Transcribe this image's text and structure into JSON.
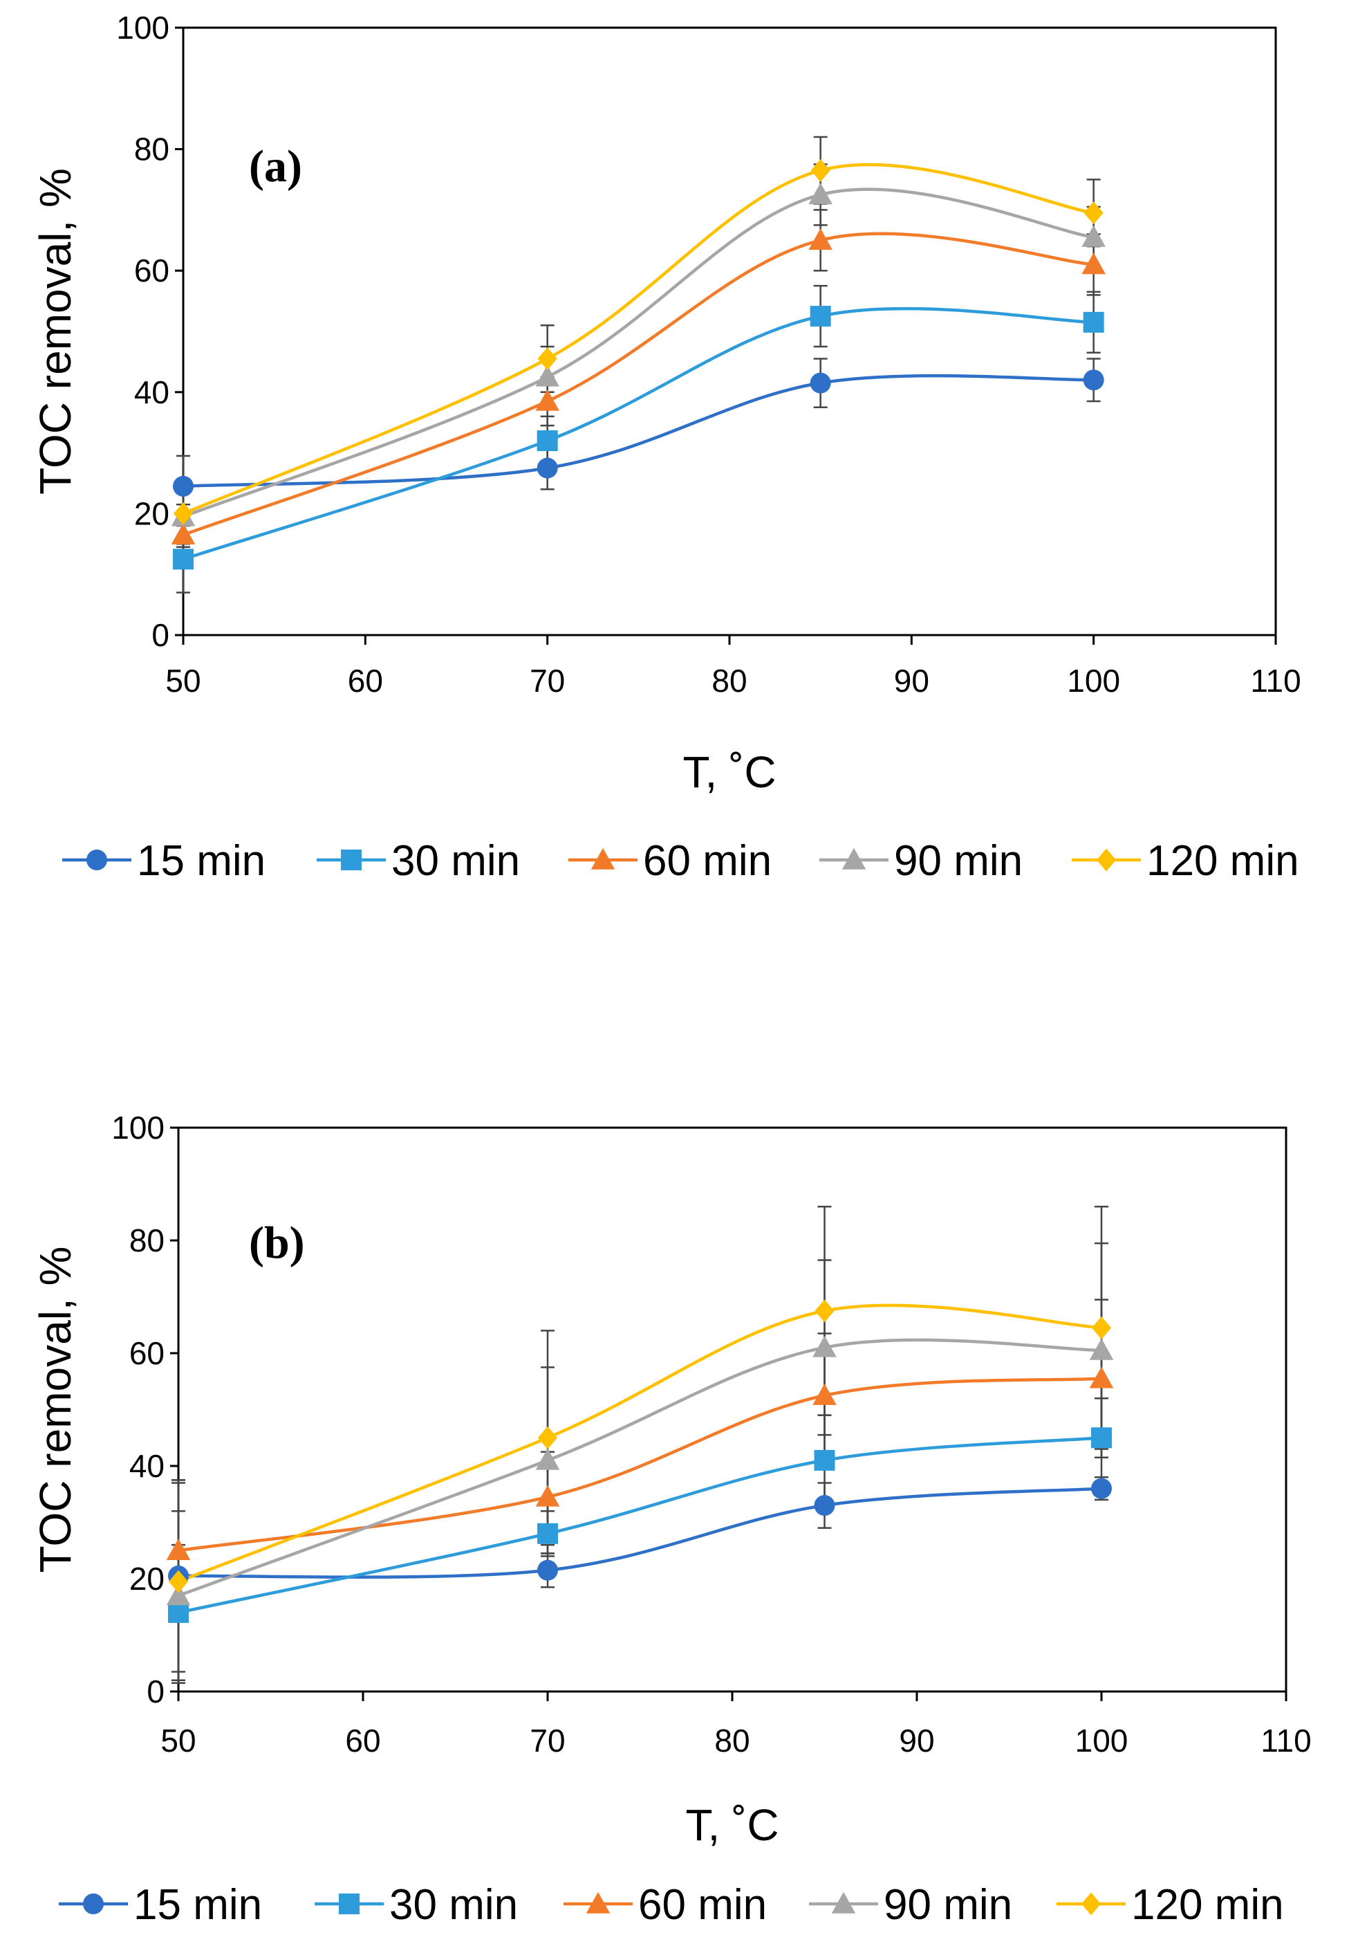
{
  "chart_data": [
    {
      "panel": "(a)",
      "type": "line",
      "xlabel": "T, ˚C",
      "ylabel": "TOC removal, %",
      "xlim": [
        50,
        110
      ],
      "ylim": [
        0,
        100
      ],
      "xticks": [
        50,
        60,
        70,
        80,
        90,
        100,
        110
      ],
      "yticks": [
        0,
        20,
        40,
        60,
        80,
        100
      ],
      "grid": false,
      "legend": "bottom",
      "x": [
        50,
        70,
        85,
        100
      ],
      "series": [
        {
          "name": "15 min",
          "color": "#2E6FC8",
          "marker": "circle",
          "values": [
            24.5,
            27.5,
            41.5,
            42.0
          ],
          "err": [
            5,
            3.5,
            4,
            3.5
          ]
        },
        {
          "name": "30 min",
          "color": "#2E9CDB",
          "marker": "square",
          "values": [
            12.5,
            32.0,
            52.5,
            51.5
          ],
          "err": [
            5.5,
            4,
            5,
            5
          ]
        },
        {
          "name": "60 min",
          "color": "#F27B2A",
          "marker": "triangle",
          "values": [
            16.5,
            38.5,
            65.0,
            61.0
          ],
          "err": [
            5,
            4,
            5,
            5
          ]
        },
        {
          "name": "90 min",
          "color": "#A6A6A6",
          "marker": "triangle",
          "values": [
            19.5,
            42.5,
            72.5,
            65.5
          ],
          "err": [
            5,
            5,
            5,
            5
          ]
        },
        {
          "name": "120 min",
          "color": "#FFC000",
          "marker": "diamond",
          "values": [
            20.0,
            45.5,
            76.5,
            69.5
          ],
          "err": [
            5,
            5.5,
            5.5,
            5.5
          ]
        }
      ]
    },
    {
      "panel": "(b)",
      "type": "line",
      "xlabel": "T, ˚C",
      "ylabel": "TOC removal, %",
      "xlim": [
        50,
        110
      ],
      "ylim": [
        0,
        100
      ],
      "xticks": [
        50,
        60,
        70,
        80,
        90,
        100,
        110
      ],
      "yticks": [
        0,
        20,
        40,
        60,
        80,
        100
      ],
      "grid": false,
      "legend": "bottom",
      "x": [
        50,
        70,
        85,
        100
      ],
      "series": [
        {
          "name": "15 min",
          "color": "#2E6FC8",
          "marker": "circle",
          "values": [
            20.5,
            21.5,
            33.0,
            36.0
          ],
          "err": [
            17,
            3,
            4,
            2
          ]
        },
        {
          "name": "30 min",
          "color": "#2E9CDB",
          "marker": "square",
          "values": [
            14.0,
            28.0,
            41.0,
            45.0
          ],
          "err": [
            12,
            4,
            8,
            7
          ]
        },
        {
          "name": "60 min",
          "color": "#F27B2A",
          "marker": "triangle",
          "values": [
            25.0,
            34.5,
            52.5,
            55.5
          ],
          "err": [
            12,
            8,
            11,
            14
          ]
        },
        {
          "name": "90 min",
          "color": "#A6A6A6",
          "marker": "triangle",
          "values": [
            17.0,
            41.0,
            61.0,
            60.5
          ],
          "err": [
            15,
            16.5,
            15.5,
            19
          ]
        },
        {
          "name": "120 min",
          "color": "#FFC000",
          "marker": "diamond",
          "values": [
            19.5,
            45.0,
            67.5,
            64.5
          ],
          "err": [
            18,
            19,
            18.5,
            21.5
          ]
        }
      ]
    }
  ]
}
